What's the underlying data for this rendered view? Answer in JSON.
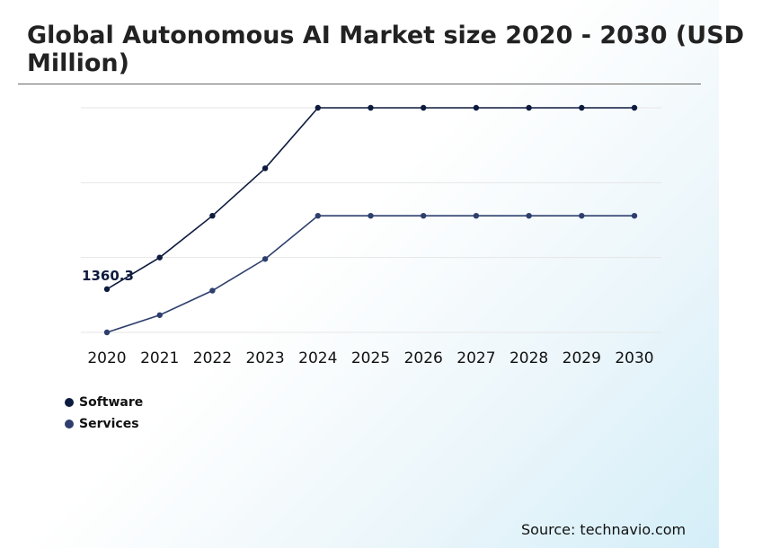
{
  "title": "Global Autonomous AI Market size 2020 - 2030 (USD\nMillion)",
  "source": "Source: technavio.com",
  "chart_data": {
    "type": "line",
    "categories": [
      "2020",
      "2021",
      "2022",
      "2023",
      "2024",
      "2025",
      "2026",
      "2027",
      "2028",
      "2029",
      "2030"
    ],
    "series": [
      {
        "name": "Software",
        "color": "#0d1b3e",
        "values": [
          1360.3,
          1580,
          1870,
          2200,
          2620,
          2620,
          2620,
          2620,
          2620,
          2620,
          2620
        ]
      },
      {
        "name": "Services",
        "color": "#2e3f6e",
        "values": [
          1060,
          1180,
          1350,
          1570,
          1870,
          1870,
          1870,
          1870,
          1870,
          1870,
          1870
        ]
      }
    ],
    "data_labels": [
      {
        "series": 0,
        "index": 0,
        "text": "1360.3"
      }
    ],
    "ylim": [
      1060,
      2620
    ],
    "gridlines": 4,
    "legend": "bottom-left"
  }
}
